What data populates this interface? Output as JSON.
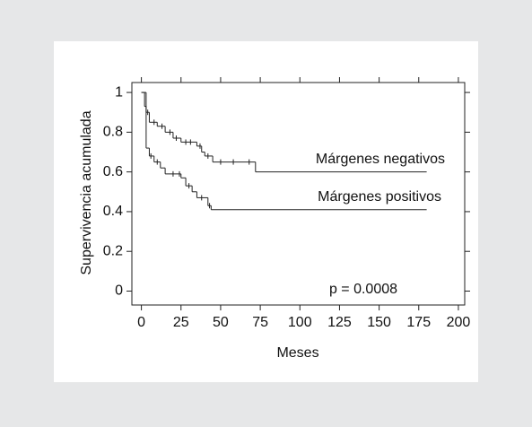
{
  "chart_data": {
    "type": "step",
    "x_label": "Meses",
    "y_label": "Supervivencia acumulada",
    "annotations": [
      "p = 0.0008"
    ],
    "xlim": [
      -6,
      204
    ],
    "ylim": [
      -0.07,
      1.05
    ],
    "xticks": [
      0,
      25,
      50,
      75,
      100,
      125,
      150,
      175,
      200
    ],
    "yticks": [
      0,
      0.2,
      0.4,
      0.6,
      0.8,
      1
    ],
    "color": "#222222",
    "series": [
      {
        "name": "Márgenes negativos",
        "x": [
          0,
          2,
          3,
          5,
          10,
          15,
          20,
          25,
          35,
          38,
          40,
          45,
          72,
          180
        ],
        "values": [
          1,
          0.93,
          0.9,
          0.85,
          0.83,
          0.8,
          0.77,
          0.75,
          0.73,
          0.7,
          0.68,
          0.65,
          0.6,
          0.6
        ],
        "censored_x": [
          4,
          8,
          13,
          18,
          22,
          28,
          31,
          37,
          42,
          50,
          58,
          68
        ]
      },
      {
        "name": "Márgenes positivos",
        "x": [
          0,
          3,
          5,
          8,
          12,
          15,
          25,
          28,
          32,
          35,
          42,
          44,
          180
        ],
        "values": [
          1,
          0.72,
          0.68,
          0.65,
          0.62,
          0.59,
          0.57,
          0.53,
          0.5,
          0.47,
          0.43,
          0.41,
          0.41
        ],
        "censored_x": [
          6,
          10,
          20,
          24,
          30,
          38,
          43
        ]
      }
    ]
  }
}
